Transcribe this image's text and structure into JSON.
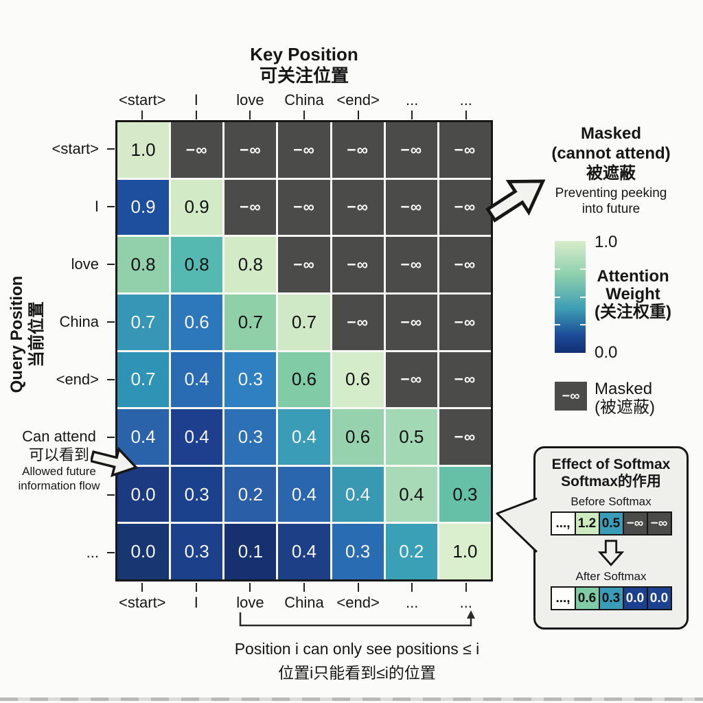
{
  "header": {
    "title_en": "Key Position",
    "title_zh": "可关注位置"
  },
  "y_axis": {
    "title_en": "Query Position",
    "title_zh": "当前位置"
  },
  "matrix": {
    "col_labels": [
      "<start>",
      "I",
      "love",
      "China",
      "<end>",
      "...",
      "..."
    ],
    "row_labels": [
      "<start>",
      "I",
      "love",
      "China",
      "<end>",
      "",
      "",
      "..."
    ],
    "bottom_labels": [
      "<start>",
      "I",
      "love",
      "China",
      "<end>",
      "...",
      "..."
    ],
    "mask_symbol": "−∞",
    "mask_color": "#4b4b4a",
    "cells": [
      [
        {
          "v": "1.0",
          "bg": "#d6eac9",
          "fg": "#111111"
        },
        {
          "v": "−∞",
          "bg": "#4b4b4a",
          "fg": "#f5f5f5"
        },
        {
          "v": "−∞",
          "bg": "#4b4b4a",
          "fg": "#f5f5f5"
        },
        {
          "v": "−∞",
          "bg": "#4b4b4a",
          "fg": "#f5f5f5"
        },
        {
          "v": "−∞",
          "bg": "#4b4b4a",
          "fg": "#f5f5f5"
        },
        {
          "v": "−∞",
          "bg": "#4b4b4a",
          "fg": "#f5f5f5"
        },
        {
          "v": "−∞",
          "bg": "#4b4b4a",
          "fg": "#f5f5f5"
        }
      ],
      [
        {
          "v": "0.9",
          "bg": "#1e4f9f",
          "fg": "#f5f5f5"
        },
        {
          "v": "0.9",
          "bg": "#d2eac6",
          "fg": "#111111"
        },
        {
          "v": "−∞",
          "bg": "#4b4b4a",
          "fg": "#f5f5f5"
        },
        {
          "v": "−∞",
          "bg": "#4b4b4a",
          "fg": "#f5f5f5"
        },
        {
          "v": "−∞",
          "bg": "#4b4b4a",
          "fg": "#f5f5f5"
        },
        {
          "v": "−∞",
          "bg": "#4b4b4a",
          "fg": "#f5f5f5"
        },
        {
          "v": "−∞",
          "bg": "#4b4b4a",
          "fg": "#f5f5f5"
        }
      ],
      [
        {
          "v": "0.8",
          "bg": "#92d0ab",
          "fg": "#111111"
        },
        {
          "v": "0.8",
          "bg": "#55b9b1",
          "fg": "#111111"
        },
        {
          "v": "0.8",
          "bg": "#d3eac6",
          "fg": "#111111"
        },
        {
          "v": "−∞",
          "bg": "#4b4b4a",
          "fg": "#f5f5f5"
        },
        {
          "v": "−∞",
          "bg": "#4b4b4a",
          "fg": "#f5f5f5"
        },
        {
          "v": "−∞",
          "bg": "#4b4b4a",
          "fg": "#f5f5f5"
        },
        {
          "v": "−∞",
          "bg": "#4b4b4a",
          "fg": "#f5f5f5"
        }
      ],
      [
        {
          "v": "0.7",
          "bg": "#3795b5",
          "fg": "#f5f5f5"
        },
        {
          "v": "0.6",
          "bg": "#2d78ba",
          "fg": "#f5f5f5"
        },
        {
          "v": "0.7",
          "bg": "#8fd0a9",
          "fg": "#111111"
        },
        {
          "v": "0.7",
          "bg": "#cfe9c6",
          "fg": "#111111"
        },
        {
          "v": "−∞",
          "bg": "#4b4b4a",
          "fg": "#f5f5f5"
        },
        {
          "v": "−∞",
          "bg": "#4b4b4a",
          "fg": "#f5f5f5"
        },
        {
          "v": "−∞",
          "bg": "#4b4b4a",
          "fg": "#f5f5f5"
        }
      ],
      [
        {
          "v": "0.7",
          "bg": "#2f93b5",
          "fg": "#f5f5f5"
        },
        {
          "v": "0.4",
          "bg": "#2a6cb3",
          "fg": "#f5f5f5"
        },
        {
          "v": "0.3",
          "bg": "#2f80c1",
          "fg": "#f5f5f5"
        },
        {
          "v": "0.6",
          "bg": "#81cba6",
          "fg": "#111111"
        },
        {
          "v": "0.6",
          "bg": "#d5ecca",
          "fg": "#111111"
        },
        {
          "v": "−∞",
          "bg": "#4b4b4a",
          "fg": "#f5f5f5"
        },
        {
          "v": "−∞",
          "bg": "#4b4b4a",
          "fg": "#f5f5f5"
        }
      ],
      [
        {
          "v": "0.4",
          "bg": "#2a63a9",
          "fg": "#f5f5f5"
        },
        {
          "v": "0.4",
          "bg": "#1d3f8d",
          "fg": "#f5f5f5"
        },
        {
          "v": "0.3",
          "bg": "#2e70b5",
          "fg": "#f5f5f5"
        },
        {
          "v": "0.4",
          "bg": "#3a9cb7",
          "fg": "#f5f5f5"
        },
        {
          "v": "0.6",
          "bg": "#95d2ad",
          "fg": "#111111"
        },
        {
          "v": "0.5",
          "bg": "#a3d8b5",
          "fg": "#111111"
        },
        {
          "v": "−∞",
          "bg": "#4b4b4a",
          "fg": "#f5f5f5"
        }
      ],
      [
        {
          "v": "0.0",
          "bg": "#1c3a7f",
          "fg": "#f5f5f5"
        },
        {
          "v": "0.3",
          "bg": "#1c418c",
          "fg": "#f5f5f5"
        },
        {
          "v": "0.2",
          "bg": "#2a5ea7",
          "fg": "#f5f5f5"
        },
        {
          "v": "0.4",
          "bg": "#2a66ae",
          "fg": "#f5f5f5"
        },
        {
          "v": "0.4",
          "bg": "#3a99b2",
          "fg": "#f5f5f5"
        },
        {
          "v": "0.4",
          "bg": "#a8dab8",
          "fg": "#111111"
        },
        {
          "v": "0.3",
          "bg": "#66c0a8",
          "fg": "#111111"
        }
      ],
      [
        {
          "v": "0.0",
          "bg": "#183672",
          "fg": "#f5f5f5"
        },
        {
          "v": "0.3",
          "bg": "#1c4089",
          "fg": "#f5f5f5"
        },
        {
          "v": "0.1",
          "bg": "#163070",
          "fg": "#f5f5f5"
        },
        {
          "v": "0.4",
          "bg": "#1c3f86",
          "fg": "#f5f5f5"
        },
        {
          "v": "0.3",
          "bg": "#2a6cb2",
          "fg": "#f5f5f5"
        },
        {
          "v": "0.2",
          "bg": "#3aa0b6",
          "fg": "#f5f5f5"
        },
        {
          "v": "1.0",
          "bg": "#d9efcd",
          "fg": "#111111"
        }
      ]
    ]
  },
  "annotations": {
    "masked": {
      "line1": "Masked",
      "line2": "(cannot attend)",
      "line3": "被遮蔽",
      "line4": "Preventing peeking",
      "line5": "into future"
    },
    "can_attend": {
      "line1": "Can attend",
      "line2": "可以看到",
      "line3": "Allowed future",
      "line4": "information flow"
    },
    "bottom_en": "Position i can only see positions ≤ i",
    "bottom_zh": "位置i只能看到≤i的位置"
  },
  "legend": {
    "max": "1.0",
    "min": "0.0",
    "label_line1": "Attention",
    "label_line2": "Weight",
    "label_line3": "(关注权重)",
    "gradient_top": "#d8ecca",
    "gradient_mid1": "#8fd0ae",
    "gradient_mid2": "#3f9fb4",
    "gradient_mid3": "#1c4a96",
    "gradient_bottom": "#132e74",
    "masked_value": "−∞",
    "masked_line1": "Masked",
    "masked_line2": "(被遮蔽)"
  },
  "softmax": {
    "title_en": "Effect of Softmax",
    "title_zh": "Softmax的作用",
    "before_label": "Before Softmax",
    "after_label": "After Softmax",
    "before_cells": [
      {
        "v": "...,",
        "bg": "#fdfdfc",
        "fg": "#111111"
      },
      {
        "v": "1.2",
        "bg": "#cdeac0",
        "fg": "#111111"
      },
      {
        "v": "0.5",
        "bg": "#3b9cb8",
        "fg": "#111111"
      },
      {
        "v": "−∞",
        "bg": "#4b4b4a",
        "fg": "#f5f5f5"
      },
      {
        "v": "−∞",
        "bg": "#4b4b4a",
        "fg": "#f5f5f5"
      }
    ],
    "after_cells": [
      {
        "v": "...,",
        "bg": "#fdfdfc",
        "fg": "#111111"
      },
      {
        "v": "0.6",
        "bg": "#7ecba6",
        "fg": "#111111"
      },
      {
        "v": "0.3",
        "bg": "#3b9cb8",
        "fg": "#111111"
      },
      {
        "v": "0.0",
        "bg": "#1c3f8e",
        "fg": "#f5f5f5"
      },
      {
        "v": "0.0",
        "bg": "#1d4290",
        "fg": "#f5f5f5"
      }
    ]
  },
  "chart_data": {
    "type": "heatmap",
    "title": "Causal attention mask: Key Position (可关注位置) × Query Position (当前位置)",
    "x_labels": [
      "<start>",
      "I",
      "love",
      "China",
      "<end>",
      "...",
      "..."
    ],
    "y_labels": [
      "<start>",
      "I",
      "love",
      "China",
      "<end>",
      "...",
      "...",
      "..."
    ],
    "values": [
      [
        1.0,
        null,
        null,
        null,
        null,
        null,
        null
      ],
      [
        0.9,
        0.9,
        null,
        null,
        null,
        null,
        null
      ],
      [
        0.8,
        0.8,
        0.8,
        null,
        null,
        null,
        null
      ],
      [
        0.7,
        0.6,
        0.7,
        0.7,
        null,
        null,
        null
      ],
      [
        0.7,
        0.4,
        0.3,
        0.6,
        0.6,
        null,
        null
      ],
      [
        0.4,
        0.4,
        0.3,
        0.4,
        0.6,
        0.5,
        null
      ],
      [
        0.0,
        0.3,
        0.2,
        0.4,
        0.4,
        0.4,
        0.3
      ],
      [
        0.0,
        0.3,
        0.1,
        0.4,
        0.3,
        0.2,
        1.0
      ]
    ],
    "masked_cells_symbol": "−∞",
    "colorbar": {
      "label": "Attention Weight (关注权重)",
      "min": 0.0,
      "max": 1.0,
      "min_color": "#132e74",
      "max_color": "#d8ecca"
    },
    "legend_position": "right",
    "grid": "white cell separators"
  }
}
